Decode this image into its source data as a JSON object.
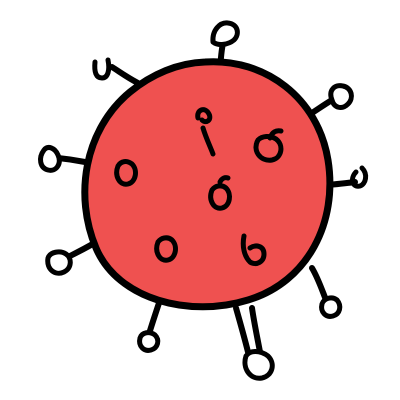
{
  "illustration": {
    "subject_icon": "virus-icon",
    "colors": {
      "body_fill": "#ef5150",
      "outline": "#000000",
      "background": "#ffffff"
    }
  }
}
